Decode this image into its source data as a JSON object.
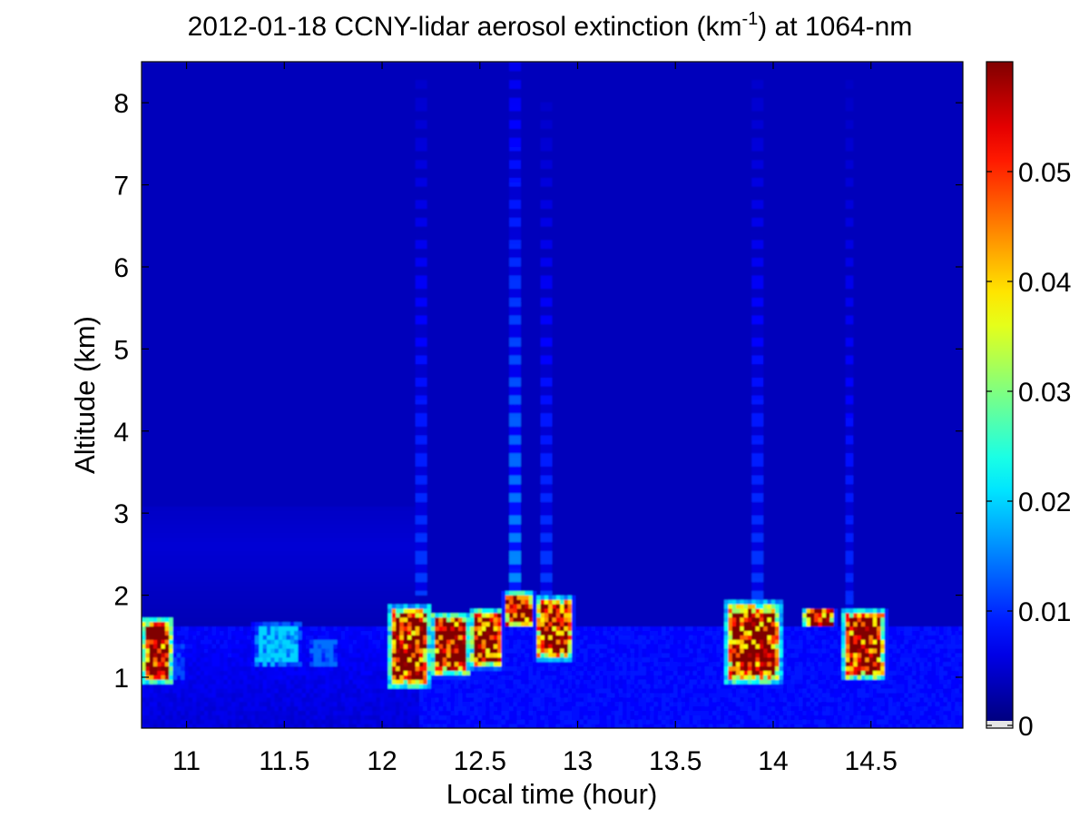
{
  "chart_data": {
    "type": "heatmap",
    "title": {
      "prefix": "2012-01-18 CCNY-lidar aerosol extinction (km",
      "superscript": "-1",
      "suffix": ") at 1064-nm"
    },
    "xlabel": "Local time (hour)",
    "ylabel": "Altitude (km)",
    "xlim": [
      10.77,
      14.97
    ],
    "ylim": [
      0.38,
      8.5
    ],
    "x_ticks": [
      11,
      11.5,
      12,
      12.5,
      13,
      13.5,
      14,
      14.5
    ],
    "x_tick_labels": [
      "11",
      "11.5",
      "12",
      "12.5",
      "13",
      "13.5",
      "14",
      "14.5"
    ],
    "y_ticks": [
      1,
      2,
      3,
      4,
      5,
      6,
      7,
      8
    ],
    "y_tick_labels": [
      "1",
      "2",
      "3",
      "4",
      "5",
      "6",
      "7",
      "8"
    ],
    "colorbar": {
      "colormap": "jet",
      "clim": [
        0,
        0.06
      ],
      "ticks": [
        0,
        0.01,
        0.02,
        0.03,
        0.04,
        0.05
      ],
      "tick_labels": [
        "0",
        "0.01",
        "0.02",
        "0.03",
        "0.04",
        "0.05"
      ],
      "under_color": "#e6e6e6"
    },
    "background_level": 0.0035,
    "features": [
      {
        "type": "plume",
        "x": [
          10.77,
          10.93
        ],
        "y": [
          0.9,
          1.75
        ],
        "value": 0.06
      },
      {
        "type": "plume",
        "x": [
          10.93,
          11.0
        ],
        "y": [
          0.9,
          1.5
        ],
        "value": 0.012
      },
      {
        "type": "plume",
        "x": [
          11.33,
          11.6
        ],
        "y": [
          1.1,
          1.7
        ],
        "value": 0.02
      },
      {
        "type": "plume",
        "x": [
          11.62,
          11.78
        ],
        "y": [
          1.1,
          1.5
        ],
        "value": 0.014
      },
      {
        "type": "plume",
        "x": [
          12.03,
          12.25
        ],
        "y": [
          0.85,
          1.9
        ],
        "value": 0.06
      },
      {
        "type": "plume",
        "x": [
          12.25,
          12.45
        ],
        "y": [
          1.0,
          1.8
        ],
        "value": 0.06
      },
      {
        "type": "plume",
        "x": [
          12.45,
          12.62
        ],
        "y": [
          1.1,
          1.85
        ],
        "value": 0.06
      },
      {
        "type": "plume",
        "x": [
          12.62,
          12.78
        ],
        "y": [
          1.6,
          2.05
        ],
        "value": 0.06
      },
      {
        "type": "plume",
        "x": [
          12.78,
          12.98
        ],
        "y": [
          1.2,
          2.0
        ],
        "value": 0.06
      },
      {
        "type": "plume",
        "x": [
          13.75,
          14.05
        ],
        "y": [
          0.9,
          1.95
        ],
        "value": 0.06
      },
      {
        "type": "plume",
        "x": [
          14.15,
          14.32
        ],
        "y": [
          1.6,
          1.85
        ],
        "value": 0.06
      },
      {
        "type": "plume",
        "x": [
          14.35,
          14.58
        ],
        "y": [
          0.95,
          1.85
        ],
        "value": 0.06
      },
      {
        "type": "column",
        "x": 12.2,
        "y": [
          2.0,
          8.4
        ],
        "value": 0.011
      },
      {
        "type": "column",
        "x": 12.68,
        "y": [
          2.0,
          8.5
        ],
        "value": 0.016
      },
      {
        "type": "column",
        "x": 12.84,
        "y": [
          2.0,
          8.0
        ],
        "value": 0.011
      },
      {
        "type": "column",
        "x": 13.92,
        "y": [
          1.95,
          8.4
        ],
        "value": 0.011
      },
      {
        "type": "column",
        "x": 14.39,
        "y": [
          1.85,
          8.4
        ],
        "value": 0.01
      }
    ]
  }
}
